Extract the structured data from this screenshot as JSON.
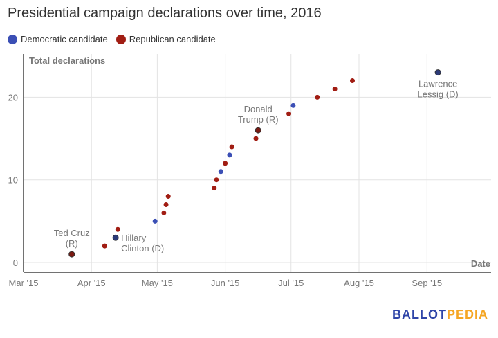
{
  "title": "Presidential campaign declarations over time, 2016",
  "legend": [
    {
      "label": "Democratic candidate",
      "color": "#3b4fb5"
    },
    {
      "label": "Republican candidate",
      "color": "#a11d13"
    }
  ],
  "logo": {
    "part1": "BALLOT",
    "part2": "PEDIA",
    "color1": "#2f45a8",
    "color2": "#f5a623"
  },
  "chart_data": {
    "type": "scatter",
    "title": "Presidential campaign declarations over time, 2016",
    "xlabel": "Date",
    "ylabel": "Total declarations",
    "xlim": [
      "2015-03-01",
      "2015-10-01"
    ],
    "ylim": [
      0,
      25
    ],
    "x_ticks": [
      {
        "date": "2015-03-01",
        "label": "Mar '15"
      },
      {
        "date": "2015-04-01",
        "label": "Apr '15"
      },
      {
        "date": "2015-05-01",
        "label": "May '15"
      },
      {
        "date": "2015-06-01",
        "label": "Jun '15"
      },
      {
        "date": "2015-07-01",
        "label": "Jul '15"
      },
      {
        "date": "2015-08-01",
        "label": "Aug '15"
      },
      {
        "date": "2015-09-01",
        "label": "Sep '15"
      }
    ],
    "y_ticks": [
      0,
      10,
      20
    ],
    "grid": true,
    "legend_position": "top-left",
    "points": [
      {
        "date": "2015-03-23",
        "y": 1,
        "party": "R",
        "label": [
          "Ted Cruz",
          "(R)"
        ]
      },
      {
        "date": "2015-04-07",
        "y": 2,
        "party": "R"
      },
      {
        "date": "2015-04-12",
        "y": 3,
        "party": "D",
        "label": [
          "Hillary",
          "Clinton (D)"
        ]
      },
      {
        "date": "2015-04-13",
        "y": 4,
        "party": "R"
      },
      {
        "date": "2015-04-30",
        "y": 5,
        "party": "D"
      },
      {
        "date": "2015-05-04",
        "y": 6,
        "party": "R"
      },
      {
        "date": "2015-05-05",
        "y": 7,
        "party": "R"
      },
      {
        "date": "2015-05-06",
        "y": 8,
        "party": "R"
      },
      {
        "date": "2015-05-27",
        "y": 9,
        "party": "R"
      },
      {
        "date": "2015-05-28",
        "y": 10,
        "party": "R"
      },
      {
        "date": "2015-05-30",
        "y": 11,
        "party": "D"
      },
      {
        "date": "2015-06-01",
        "y": 12,
        "party": "R"
      },
      {
        "date": "2015-06-03",
        "y": 13,
        "party": "D"
      },
      {
        "date": "2015-06-04",
        "y": 14,
        "party": "R"
      },
      {
        "date": "2015-06-15",
        "y": 15,
        "party": "R"
      },
      {
        "date": "2015-06-16",
        "y": 16,
        "party": "R",
        "label": [
          "Donald",
          "Trump (R)"
        ]
      },
      {
        "date": "2015-06-30",
        "y": 18,
        "party": "R"
      },
      {
        "date": "2015-07-02",
        "y": 19,
        "party": "D"
      },
      {
        "date": "2015-07-13",
        "y": 20,
        "party": "R"
      },
      {
        "date": "2015-07-21",
        "y": 21,
        "party": "R"
      },
      {
        "date": "2015-07-29",
        "y": 22,
        "party": "R"
      },
      {
        "date": "2015-09-06",
        "y": 23,
        "party": "D",
        "label": [
          "Lawrence",
          "Lessig (D)"
        ]
      }
    ]
  }
}
